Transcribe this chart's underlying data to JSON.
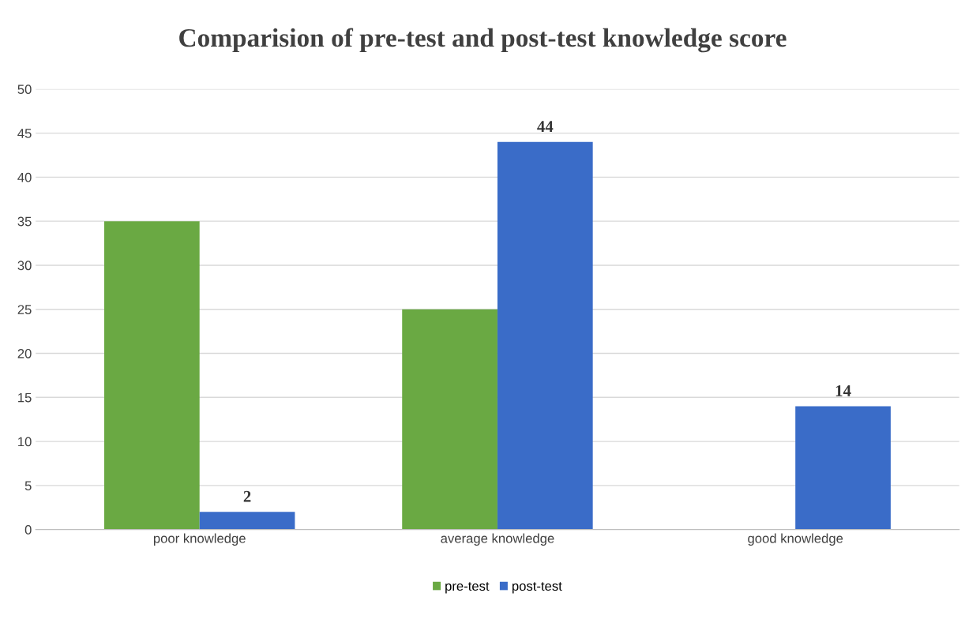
{
  "chart_data": {
    "type": "bar",
    "title": "Comparision of pre-test and post-test knowledge score",
    "categories": [
      "poor knowledge",
      "average knowledge",
      "good knowledge"
    ],
    "series": [
      {
        "name": "pre-test",
        "color": "#6aa943",
        "values": [
          35,
          25,
          0
        ]
      },
      {
        "name": "post-test",
        "color": "#3a6cc8",
        "values": [
          2,
          44,
          14
        ],
        "value_labels": [
          "2",
          "44",
          "14"
        ]
      }
    ],
    "ylim": [
      0,
      50
    ],
    "yticks": [
      0,
      5,
      10,
      15,
      20,
      25,
      30,
      35,
      40,
      45,
      50
    ],
    "grid": "y",
    "legend": "bottom"
  }
}
